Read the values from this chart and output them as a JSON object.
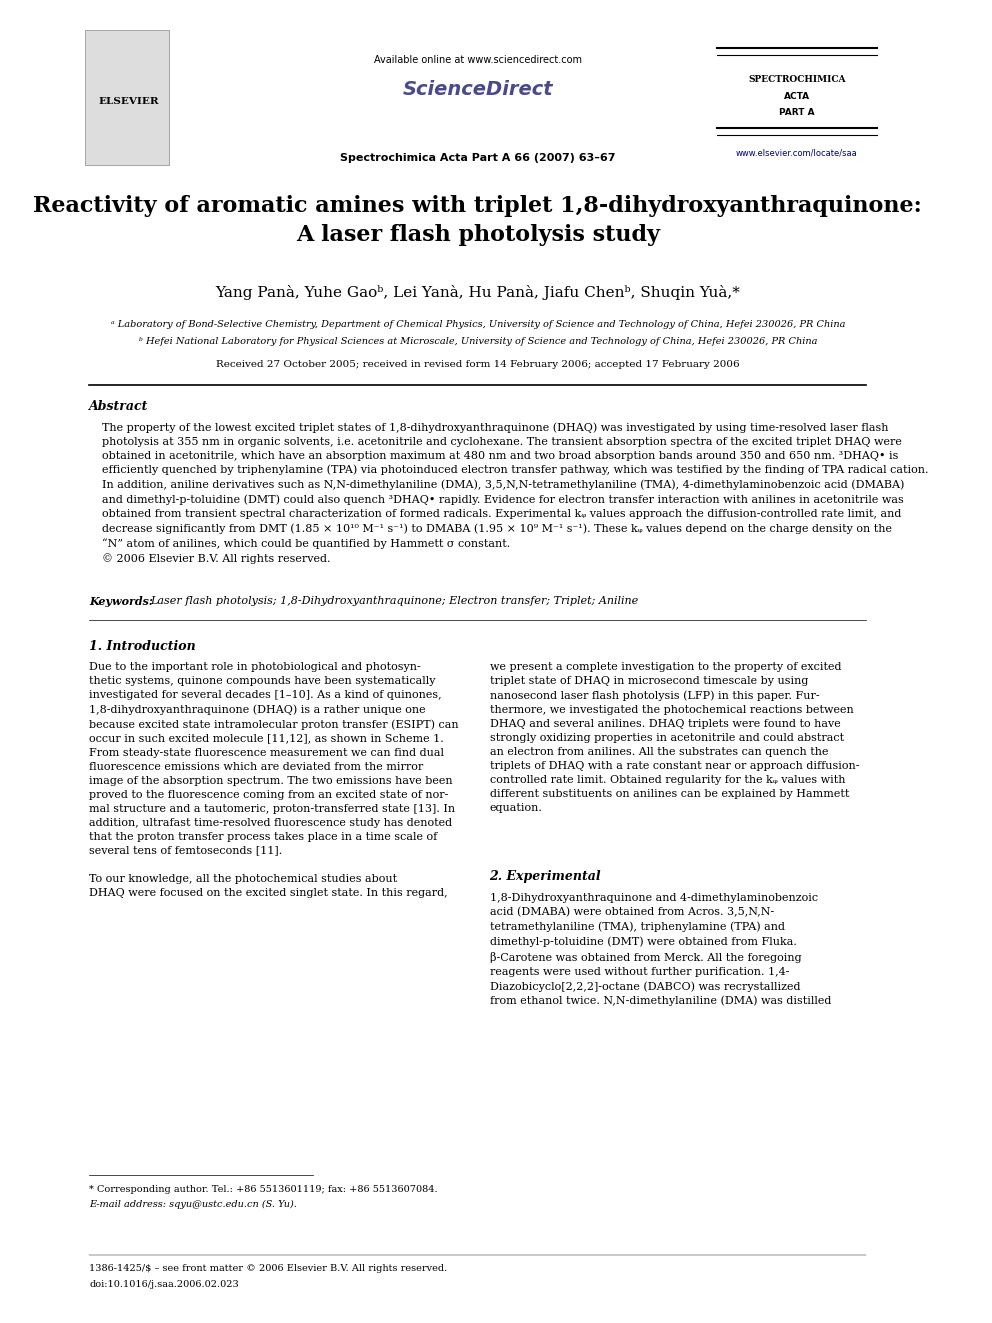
{
  "page_width": 9.92,
  "page_height": 13.23,
  "background_color": "#ffffff",
  "header": {
    "available_online_text": "Available online at www.sciencedirect.com",
    "sciencedirect_text": "ScienceDirect",
    "journal_line": "Spectrochimica Acta Part A 66 (2007) 63–67",
    "elsevier_text": "ELSEVIER",
    "spectrochimica_line1": "SPECTROCHIMICA",
    "spectrochimica_line2": "ACTA",
    "spectrochimica_line3": "PART A",
    "website_text": "www.elsevier.com/locate/saa"
  },
  "title": "Reactivity of aromatic amines with triplet 1,8-dihydroxyanthraquinone:\nA laser flash photolysis study",
  "authors": "Yang Panà, Yuhe Gaoᵇ, Lei Yanà, Hu Panà, Jiafu Chenᵇ, Shuqin Yuà,*",
  "affiliation_a": "ᵃ Laboratory of Bond-Selective Chemistry, Department of Chemical Physics, University of Science and Technology of China, Hefei 230026, PR China",
  "affiliation_b": "ᵇ Hefei National Laboratory for Physical Sciences at Microscale, University of Science and Technology of China, Hefei 230026, PR China",
  "received_text": "Received 27 October 2005; received in revised form 14 February 2006; accepted 17 February 2006",
  "abstract_title": "Abstract",
  "abstract_text": "The property of the lowest excited triplet states of 1,8-dihydroxyanthraquinone (DHAQ) was investigated by using time-resolved laser flash\nphotolysis at 355 nm in organic solvents, i.e. acetonitrile and cyclohexane. The transient absorption spectra of the excited triplet DHAQ were\nobtained in acetonitrile, which have an absorption maximum at 480 nm and two broad absorption bands around 350 and 650 nm. ³DHAQ• is\nefficiently quenched by triphenylamine (TPA) via photoinduced electron transfer pathway, which was testified by the finding of TPA radical cation.\nIn addition, aniline derivatives such as N,N-dimethylaniline (DMA), 3,5,N,N-tetramethylaniline (TMA), 4-dimethylaminobenzoic acid (DMABA)\nand dimethyl-p-toluidine (DMT) could also quench ³DHAQ• rapidly. Evidence for electron transfer interaction with anilines in acetonitrile was\nobtained from transient spectral characterization of formed radicals. Experimental kᵩ values approach the diffusion-controlled rate limit, and\ndecrease significantly from DMT (1.85 × 10¹⁰ M⁻¹ s⁻¹) to DMABA (1.95 × 10⁹ M⁻¹ s⁻¹). These kᵩ values depend on the charge density on the\n“N” atom of anilines, which could be quantified by Hammett σ constant.\n© 2006 Elsevier B.V. All rights reserved.",
  "keywords_label": "Keywords:",
  "keywords_text": "Laser flash photolysis; 1,8-Dihydroxyanthraquinone; Electron transfer; Triplet; Aniline",
  "section1_title": "1. Introduction",
  "section1_col1": "Due to the important role in photobiological and photosyn-\nthetic systems, quinone compounds have been systematically\ninvestigated for several decades [1–10]. As a kind of quinones,\n1,8-dihydroxyanthraquinone (DHAQ) is a rather unique one\nbecause excited state intramolecular proton transfer (ESIPT) can\noccur in such excited molecule [11,12], as shown in Scheme 1.\nFrom steady-state fluorescence measurement we can find dual\nfluorescence emissions which are deviated from the mirror\nimage of the absorption spectrum. The two emissions have been\nproved to the fluorescence coming from an excited state of nor-\nmal structure and a tautomeric, proton-transferred state [13]. In\naddition, ultrafast time-resolved fluorescence study has denoted\nthat the proton transfer process takes place in a time scale of\nseveral tens of femtoseconds [11].\n\nTo our knowledge, all the photochemical studies about\nDHAQ were focused on the excited singlet state. In this regard,",
  "section1_col2": "we present a complete investigation to the property of excited\ntriplet state of DHAQ in microsecond timescale by using\nnanosecond laser flash photolysis (LFP) in this paper. Fur-\nthermore, we investigated the photochemical reactions between\nDHAQ and several anilines. DHAQ triplets were found to have\nstrongly oxidizing properties in acetonitrile and could abstract\nan electron from anilines. All the substrates can quench the\ntriplets of DHAQ with a rate constant near or approach diffusion-\ncontrolled rate limit. Obtained regularity for the kᵩ values with\ndifferent substituents on anilines can be explained by Hammett\nequation.",
  "section2_title": "2. Experimental",
  "section2_col2": "1,8-Dihydroxyanthraquinone and 4-dimethylaminobenzoic\nacid (DMABA) were obtained from Acros. 3,5,N,N-\ntetramethylaniline (TMA), triphenylamine (TPA) and\ndimethyl-p-toluidine (DMT) were obtained from Fluka.\nβ-Carotene was obtained from Merck. All the foregoing\nreagents were used without further purification. 1,4-\nDiazobicyclo[2,2,2]-octane (DABCO) was recrystallized\nfrom ethanol twice. N,N-dimethylaniline (DMA) was distilled",
  "footnote_corresponding": "* Corresponding author. Tel.: +86 5513601119; fax: +86 5513607084.",
  "footnote_email": "E-mail address: sqyu@ustc.edu.cn (S. Yu).",
  "footer_issn": "1386-1425/$ – see front matter © 2006 Elsevier B.V. All rights reserved.",
  "footer_doi": "doi:10.1016/j.saa.2006.02.023",
  "text_color": "#000000",
  "title_color": "#000000",
  "link_color": "#000080"
}
